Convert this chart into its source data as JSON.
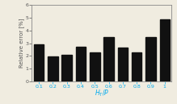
{
  "categories": [
    "0.1",
    "0.2",
    "0.3",
    "0.4",
    "0.5",
    "0.6",
    "0.7",
    "0.8",
    "0.9",
    "1"
  ],
  "values": [
    2.88,
    1.93,
    2.07,
    2.72,
    2.25,
    3.47,
    2.63,
    2.3,
    3.47,
    4.88
  ],
  "bar_color": "#111111",
  "xlabel": "$H_T/P$",
  "ylabel": "Relative error [%]",
  "ylim": [
    0,
    6
  ],
  "yticks": [
    0,
    1,
    2,
    3,
    4,
    5,
    6
  ],
  "xlabel_color": "#00aaee",
  "xtick_color": "#00aaee",
  "ylabel_color": "#555555",
  "ytick_color": "#555555",
  "background_color": "#f0ece0",
  "ylabel_fontsize": 5.0,
  "xlabel_fontsize": 5.5,
  "tick_fontsize": 4.5
}
